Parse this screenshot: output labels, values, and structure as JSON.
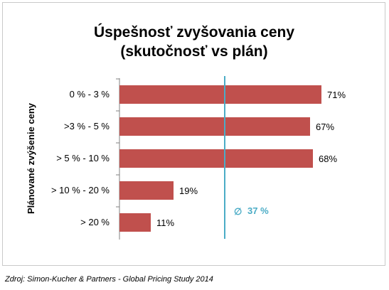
{
  "chart_data": {
    "type": "bar",
    "orientation": "horizontal",
    "title_line1": "Úspešnosť  zvyšovania  ceny",
    "title_line2": "(skutočnosť  vs plán)",
    "ylabel": "Plánované zvýšenie ceny",
    "categories": [
      "0 % - 3 %",
      ">3 % - 5 %",
      "> 5 % - 10 %",
      "> 10 % - 20 %",
      "> 20 %"
    ],
    "values": [
      71,
      67,
      68,
      19,
      11
    ],
    "value_labels": [
      "71%",
      "67%",
      "68%",
      "19%",
      "11%"
    ],
    "xlim": [
      0,
      80
    ],
    "grid": false,
    "average": {
      "value": 37,
      "symbol": "∅",
      "label": "37 %",
      "color": "#4bacc6"
    },
    "bar_color": "#c0504d"
  },
  "source": "Zdroj: Simon-Kucher & Partners - Global Pricing Study 2014"
}
